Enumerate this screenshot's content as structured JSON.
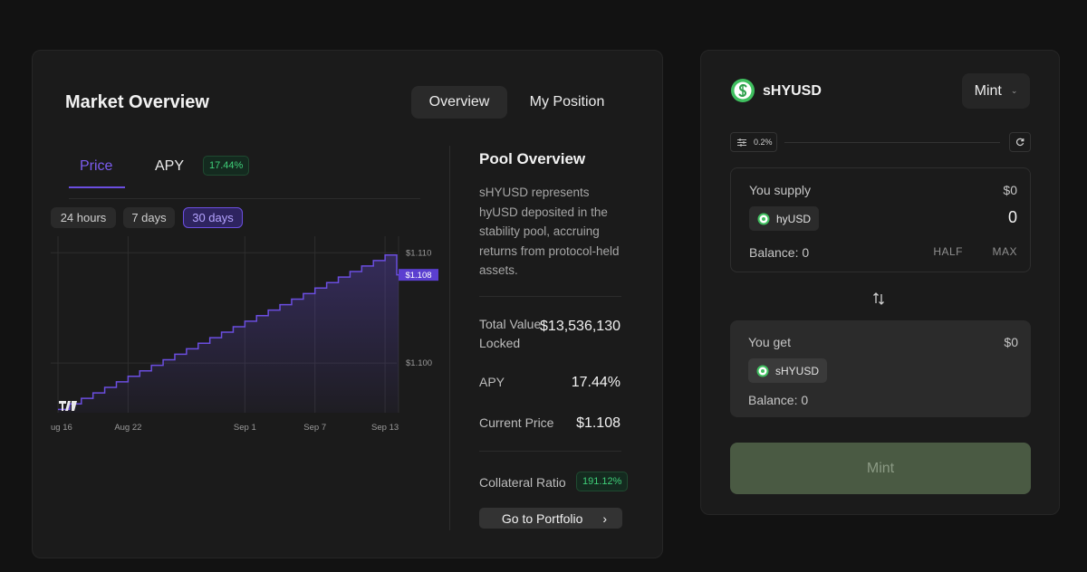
{
  "market": {
    "title": "Market Overview",
    "seg_tabs": [
      "Overview",
      "My Position"
    ],
    "chart_tabs": {
      "price": "Price",
      "apy": "APY",
      "apy_badge": "17.44%"
    },
    "ranges": [
      "24 hours",
      "7 days",
      "30 days"
    ],
    "brand_watermark": "TV"
  },
  "chart_data": {
    "type": "line",
    "style": "step-area",
    "title": "",
    "xlabel": "",
    "ylabel": "",
    "x_ticks": [
      "ug 16",
      "Aug 22",
      "Sep 1",
      "Sep 7",
      "Sep 13"
    ],
    "x_tick_days": [
      0,
      6,
      16,
      22,
      28
    ],
    "y_ticks": [
      "$1.110",
      "$1.100"
    ],
    "y_tick_values": [
      1.11,
      1.1
    ],
    "current_label": "$1.108",
    "current_value": 1.108,
    "series": [
      {
        "name": "Price",
        "color": "#6b4ee0",
        "x": [
          0,
          1,
          2,
          3,
          4,
          5,
          6,
          7,
          8,
          9,
          10,
          11,
          12,
          13,
          14,
          15,
          16,
          17,
          18,
          19,
          20,
          21,
          22,
          23,
          24,
          25,
          26,
          27,
          28,
          29
        ],
        "values": [
          1.0958,
          1.0963,
          1.0968,
          1.0973,
          1.0978,
          1.0983,
          1.0988,
          1.0993,
          1.0998,
          1.1003,
          1.1008,
          1.1013,
          1.1018,
          1.1023,
          1.1028,
          1.1033,
          1.1038,
          1.1043,
          1.1048,
          1.1053,
          1.1058,
          1.1063,
          1.1068,
          1.1073,
          1.1078,
          1.1083,
          1.1088,
          1.1093,
          1.1098,
          1.108
        ]
      }
    ]
  },
  "pool": {
    "title": "Pool Overview",
    "description": "sHYUSD represents hyUSD deposited in the stability pool, accruing returns from protocol-held assets.",
    "tvl_label": "Total Value Locked",
    "tvl_value": "$13,536,130",
    "apy_label": "APY",
    "apy_value": "17.44%",
    "price_label": "Current Price",
    "price_value": "$1.108",
    "cr_label": "Collateral Ratio",
    "cr_value": "191.12%",
    "portfolio_label": "Go to Portfolio",
    "portfolio_arrow": "›"
  },
  "mint": {
    "token": "sHYUSD",
    "mode": "Mint",
    "mode_chev": "⌄",
    "slippage": "0.2%",
    "supply": {
      "label": "You supply",
      "usd": "$0",
      "token": "hyUSD",
      "amount": "0",
      "balance": "Balance: 0",
      "half": "HALF",
      "max": "MAX"
    },
    "get": {
      "label": "You get",
      "usd": "$0",
      "token": "sHYUSD",
      "balance": "Balance: 0"
    },
    "button": "Mint"
  },
  "colors": {
    "accent": "#6b4ee0",
    "positive": "#3fcf79",
    "token_green": "#3fbf5f",
    "mint_button": "#4a5a43"
  }
}
